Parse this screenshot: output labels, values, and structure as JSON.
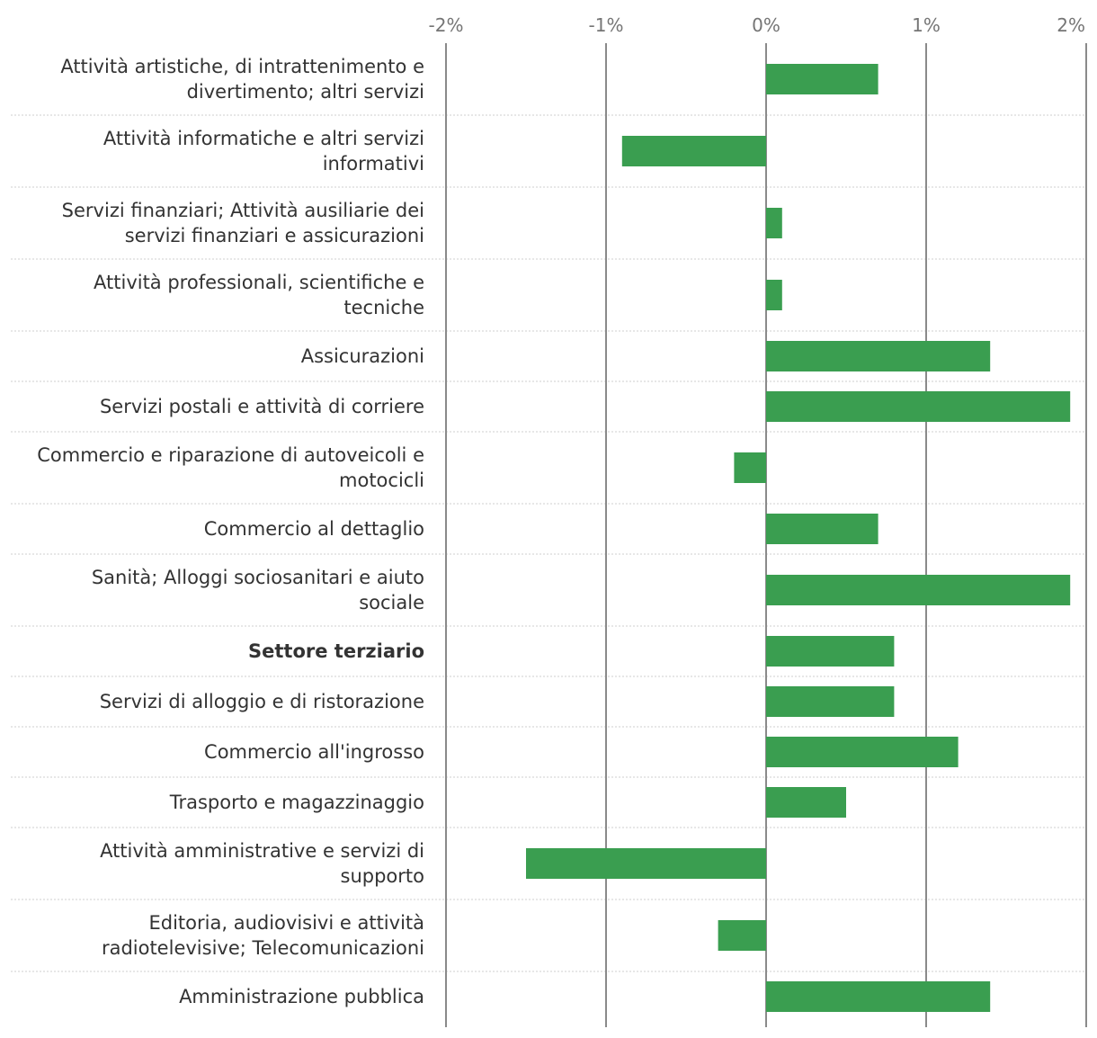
{
  "chart_data": {
    "type": "bar",
    "orientation": "horizontal",
    "x_axis_position": "top",
    "xlim": [
      -2,
      2
    ],
    "ticks": [
      {
        "value": -2,
        "label": "-2%"
      },
      {
        "value": -1,
        "label": "-1%"
      },
      {
        "value": 0,
        "label": "0%"
      },
      {
        "value": 1,
        "label": "1%"
      },
      {
        "value": 2,
        "label": "2%"
      }
    ],
    "bar_color": "#3a9e50",
    "categories": [
      {
        "lines": [
          "Attività artistiche, di intrattenimento e",
          "divertimento; altri servizi"
        ],
        "value": 0.7,
        "bold": false
      },
      {
        "lines": [
          "Attività informatiche e altri servizi",
          "informativi"
        ],
        "value": -0.9,
        "bold": false
      },
      {
        "lines": [
          "Servizi finanziari; Attività ausiliarie dei",
          "servizi finanziari e assicurazioni"
        ],
        "value": 0.1,
        "bold": false
      },
      {
        "lines": [
          "Attività professionali, scientifiche e",
          "tecniche"
        ],
        "value": 0.1,
        "bold": false
      },
      {
        "lines": [
          "Assicurazioni"
        ],
        "value": 1.4,
        "bold": false
      },
      {
        "lines": [
          "Servizi postali e attività di corriere"
        ],
        "value": 1.9,
        "bold": false
      },
      {
        "lines": [
          "Commercio e riparazione di autoveicoli e",
          "motocicli"
        ],
        "value": -0.2,
        "bold": false
      },
      {
        "lines": [
          "Commercio al dettaglio"
        ],
        "value": 0.7,
        "bold": false
      },
      {
        "lines": [
          "Sanità; Alloggi sociosanitari e aiuto",
          "sociale"
        ],
        "value": 1.9,
        "bold": false
      },
      {
        "lines": [
          "Settore terziario"
        ],
        "value": 0.8,
        "bold": true
      },
      {
        "lines": [
          "Servizi di alloggio e di ristorazione"
        ],
        "value": 0.8,
        "bold": false
      },
      {
        "lines": [
          "Commercio all'ingrosso"
        ],
        "value": 1.2,
        "bold": false
      },
      {
        "lines": [
          "Trasporto e magazzinaggio"
        ],
        "value": 0.5,
        "bold": false
      },
      {
        "lines": [
          "Attività amministrative e servizi di",
          "supporto"
        ],
        "value": -1.5,
        "bold": false
      },
      {
        "lines": [
          "Editoria, audiovisivi e attività",
          "radiotelevisive; Telecomunicazioni"
        ],
        "value": -0.3,
        "bold": false
      },
      {
        "lines": [
          "Amministrazione pubblica"
        ],
        "value": 1.4,
        "bold": false
      }
    ]
  }
}
